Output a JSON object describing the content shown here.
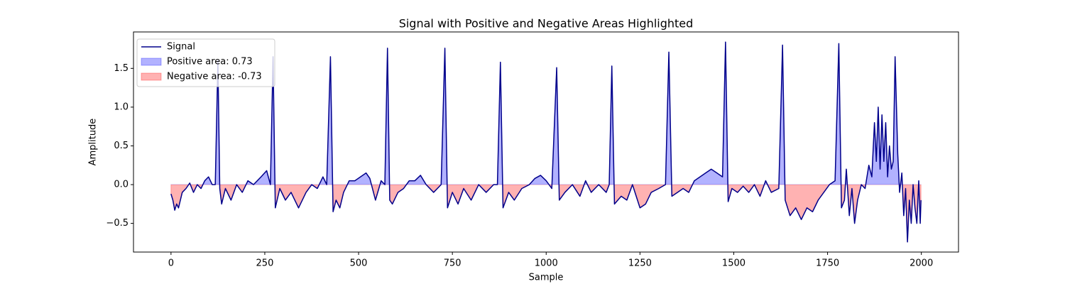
{
  "chart_data": {
    "type": "line",
    "title": "Signal with Positive and Negative Areas Highlighted",
    "x_label": "Sample",
    "y_label": "Amplitude",
    "x": [
      0,
      5,
      10,
      15,
      20,
      30,
      40,
      50,
      60,
      70,
      80,
      90,
      100,
      110,
      118,
      125,
      130,
      135,
      145,
      160,
      175,
      190,
      205,
      220,
      240,
      255,
      265,
      272,
      278,
      290,
      305,
      320,
      340,
      360,
      375,
      390,
      405,
      415,
      425,
      432,
      440,
      450,
      460,
      475,
      490,
      505,
      520,
      530,
      545,
      560,
      570,
      577,
      583,
      590,
      605,
      620,
      635,
      650,
      665,
      680,
      700,
      720,
      730,
      737,
      750,
      765,
      780,
      800,
      820,
      840,
      860,
      870,
      878,
      885,
      900,
      915,
      935,
      955,
      970,
      985,
      1000,
      1015,
      1028,
      1035,
      1050,
      1070,
      1090,
      1105,
      1120,
      1140,
      1160,
      1168,
      1175,
      1182,
      1200,
      1215,
      1230,
      1250,
      1265,
      1280,
      1300,
      1318,
      1327,
      1335,
      1350,
      1365,
      1380,
      1395,
      1410,
      1425,
      1440,
      1455,
      1470,
      1478,
      1485,
      1495,
      1510,
      1525,
      1540,
      1555,
      1570,
      1585,
      1600,
      1620,
      1630,
      1637,
      1650,
      1665,
      1680,
      1695,
      1710,
      1725,
      1740,
      1755,
      1770,
      1780,
      1787,
      1795,
      1800,
      1808,
      1815,
      1822,
      1830,
      1840,
      1850,
      1860,
      1868,
      1875,
      1880,
      1885,
      1890,
      1895,
      1900,
      1905,
      1910,
      1915,
      1920,
      1925,
      1930,
      1937,
      1942,
      1948,
      1953,
      1958,
      1963,
      1968,
      1973,
      1978,
      1983,
      1988,
      1993,
      1997,
      1999
    ],
    "series": [
      {
        "name": "Signal",
        "color": "#00008b",
        "values": [
          -0.12,
          -0.2,
          -0.33,
          -0.25,
          -0.3,
          -0.1,
          -0.05,
          0.02,
          -0.1,
          0.0,
          -0.05,
          0.05,
          0.1,
          0.0,
          0.0,
          1.6,
          -0.05,
          -0.25,
          -0.05,
          -0.2,
          0.0,
          -0.1,
          0.05,
          0.0,
          0.1,
          0.18,
          0.0,
          1.65,
          -0.3,
          -0.05,
          -0.2,
          -0.1,
          -0.3,
          -0.1,
          0.0,
          -0.05,
          0.1,
          0.0,
          1.65,
          -0.35,
          -0.2,
          -0.3,
          -0.1,
          0.05,
          0.05,
          0.1,
          0.15,
          0.08,
          -0.2,
          0.05,
          0.0,
          1.76,
          -0.2,
          -0.25,
          -0.1,
          -0.05,
          0.05,
          0.05,
          0.12,
          0.0,
          -0.1,
          0.0,
          1.76,
          -0.3,
          -0.1,
          -0.25,
          -0.05,
          -0.2,
          0.0,
          -0.1,
          0.0,
          0.0,
          1.58,
          -0.3,
          -0.1,
          -0.2,
          -0.05,
          0.0,
          0.08,
          0.12,
          0.05,
          -0.05,
          1.51,
          -0.2,
          -0.1,
          0.0,
          -0.15,
          0.05,
          -0.1,
          0.0,
          -0.1,
          0.0,
          1.53,
          -0.25,
          -0.15,
          -0.2,
          0.0,
          -0.3,
          -0.25,
          -0.1,
          -0.05,
          0.0,
          1.71,
          -0.15,
          -0.1,
          -0.05,
          -0.1,
          0.05,
          0.1,
          0.15,
          0.2,
          0.15,
          0.1,
          1.84,
          -0.22,
          -0.05,
          -0.1,
          -0.02,
          -0.1,
          0.0,
          -0.15,
          0.05,
          -0.1,
          -0.05,
          1.8,
          -0.2,
          -0.4,
          -0.3,
          -0.45,
          -0.3,
          -0.35,
          -0.2,
          -0.1,
          0.0,
          0.05,
          1.82,
          -0.3,
          -0.2,
          0.2,
          -0.4,
          -0.05,
          -0.5,
          -0.2,
          0.0,
          -0.05,
          0.25,
          0.1,
          0.8,
          0.3,
          1.0,
          0.2,
          0.9,
          0.3,
          0.8,
          0.1,
          0.5,
          0.2,
          0.3,
          1.65,
          0.4,
          -0.1,
          0.15,
          -0.4,
          -0.05,
          -0.74,
          -0.2,
          -0.5,
          0.0,
          -0.3,
          -0.5,
          0.05,
          -0.5,
          -0.2
        ]
      }
    ],
    "fills": [
      {
        "name": "Positive area: 0.73",
        "color": "#0000ff"
      },
      {
        "name": "Negative area: -0.73",
        "color": "#ff0000"
      }
    ],
    "xlim": [
      -100,
      2099
    ],
    "ylim": [
      -0.87,
      1.97
    ],
    "xticks": [
      0,
      250,
      500,
      750,
      1000,
      1250,
      1500,
      1750,
      2000
    ],
    "yticks": [
      {
        "value": -0.5,
        "label": "−0.5"
      },
      {
        "value": 0,
        "label": "0.0"
      },
      {
        "value": 0.5,
        "label": "0.5"
      },
      {
        "value": 1,
        "label": "1.0"
      },
      {
        "value": 1.5,
        "label": "1.5"
      }
    ],
    "legend": "upper left"
  }
}
